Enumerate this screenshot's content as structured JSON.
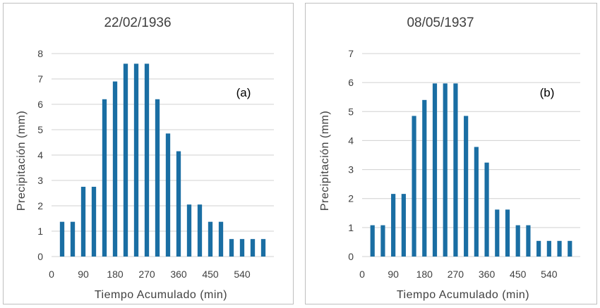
{
  "chart_data": [
    {
      "type": "bar",
      "title": "22/02/1936",
      "annotation": "(a)",
      "xlabel": "Tiempo Acumulado (min)",
      "ylabel": "Precipitación (mm)",
      "x": [
        30,
        60,
        90,
        120,
        150,
        180,
        210,
        240,
        270,
        300,
        330,
        360,
        390,
        420,
        450,
        480,
        510,
        540,
        570,
        600
      ],
      "values": [
        1.37,
        1.37,
        2.75,
        2.75,
        6.2,
        6.9,
        7.6,
        7.6,
        7.6,
        6.2,
        4.85,
        4.15,
        2.05,
        2.05,
        1.37,
        1.37,
        0.69,
        0.69,
        0.69,
        0.69
      ],
      "xticks": [
        "0",
        "90",
        "180",
        "270",
        "360",
        "450",
        "540"
      ],
      "yticks": [
        "0",
        "1",
        "2",
        "3",
        "4",
        "5",
        "6",
        "7",
        "8"
      ],
      "xlim": [
        0,
        630
      ],
      "ylim": [
        0,
        8
      ],
      "grid": true,
      "color": "#1a6ea3"
    },
    {
      "type": "bar",
      "title": "08/05/1937",
      "annotation": "(b)",
      "xlabel": "Tiempo Acumulado (min)",
      "ylabel": "Precipitación (mm)",
      "x": [
        30,
        60,
        90,
        120,
        150,
        180,
        210,
        240,
        270,
        300,
        330,
        360,
        390,
        420,
        450,
        480,
        510,
        540,
        570,
        600
      ],
      "values": [
        1.08,
        1.08,
        2.16,
        2.16,
        4.85,
        5.4,
        5.97,
        5.97,
        5.97,
        4.85,
        3.78,
        3.24,
        1.62,
        1.62,
        1.08,
        1.08,
        0.54,
        0.54,
        0.54,
        0.54
      ],
      "xticks": [
        "0",
        "90",
        "180",
        "270",
        "360",
        "450",
        "540"
      ],
      "yticks": [
        "0",
        "1",
        "2",
        "3",
        "4",
        "5",
        "6",
        "7"
      ],
      "xlim": [
        0,
        630
      ],
      "ylim": [
        0,
        7
      ],
      "grid": true,
      "color": "#1a6ea3"
    }
  ]
}
